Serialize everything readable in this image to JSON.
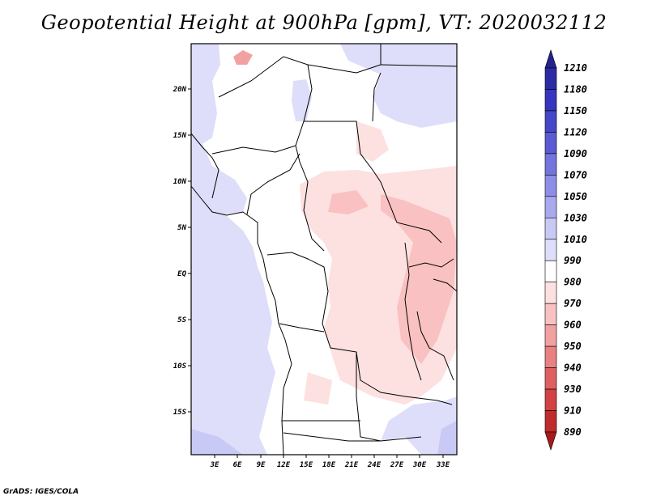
{
  "title": "Geopotential Height at 900hPa [gpm], VT: 2020032112",
  "credit": "GrADS: IGES/COLA",
  "map": {
    "lat_labels": [
      "20N",
      "15N",
      "10N",
      "5N",
      "EQ",
      "5S",
      "10S",
      "15S"
    ],
    "lon_labels": [
      "3E",
      "6E",
      "9E",
      "12E",
      "15E",
      "18E",
      "21E",
      "24E",
      "27E",
      "30E",
      "33E"
    ],
    "lon_range": [
      "0E",
      "34E"
    ],
    "lat_range": [
      "20S",
      "25N"
    ]
  },
  "colorbar": {
    "levels": [
      "1210",
      "1180",
      "1150",
      "1120",
      "1090",
      "1070",
      "1050",
      "1030",
      "1010",
      "990",
      "980",
      "970",
      "960",
      "950",
      "940",
      "930",
      "910",
      "890"
    ],
    "colors": [
      "#23238f",
      "#2b2ba6",
      "#3535bd",
      "#4646c8",
      "#5a5ad4",
      "#7474de",
      "#8e8ee6",
      "#a9a9ee",
      "#c9c9f6",
      "#dedefa",
      "#ffffff",
      "#fde0e0",
      "#f9c1c1",
      "#f2a1a1",
      "#e98181",
      "#df6060",
      "#d24242",
      "#c02c2c",
      "#a81a1a"
    ]
  }
}
